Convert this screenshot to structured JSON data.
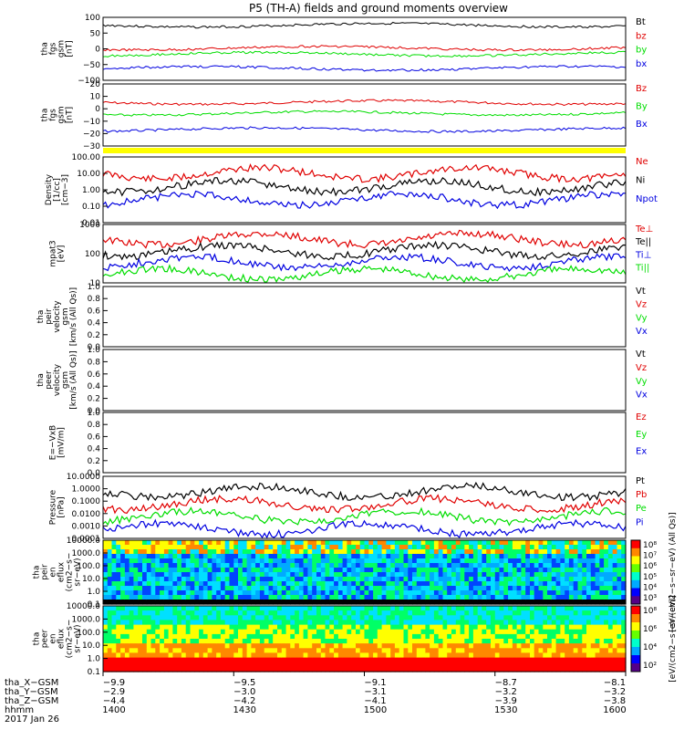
{
  "title": "P5 (TH-A) fields and ground moments overview",
  "colors": {
    "black": "#000000",
    "red": "#e00000",
    "green": "#00dd00",
    "blue": "#0000e0",
    "yellow": "#ffff00"
  },
  "chart_data": [
    {
      "type": "line",
      "id": "p1",
      "ylabel": [
        "tha",
        "fgs",
        "gsm",
        "[nT]"
      ],
      "yticks": [
        "100",
        "50",
        "0",
        "−50",
        "−100"
      ],
      "ylim": [
        -100,
        100
      ],
      "series": [
        {
          "name": "Bt",
          "color": "black",
          "level": 75
        },
        {
          "name": "bz",
          "color": "red",
          "level": 2
        },
        {
          "name": "by",
          "color": "green",
          "level": -17
        },
        {
          "name": "bx",
          "color": "blue",
          "level": -62
        }
      ]
    },
    {
      "type": "line",
      "id": "p2",
      "ylabel": [
        "tha",
        "fgs",
        "gsm",
        "[nT]"
      ],
      "yticks": [
        "20",
        "10",
        "0",
        "−10",
        "−20",
        "−30"
      ],
      "ylim": [
        -35,
        22
      ],
      "series": [
        {
          "name": "Bz",
          "color": "red",
          "level": 5
        },
        {
          "name": "By",
          "color": "green",
          "level": -5
        },
        {
          "name": "Bx",
          "color": "blue",
          "level": -20
        }
      ]
    },
    {
      "type": "line",
      "id": "p3",
      "ylabel": [
        "Density",
        "[1/cc]",
        "[cm−3]"
      ],
      "yticks": [
        "100.00",
        "10.00",
        "1.00",
        "0.10",
        "0.01"
      ],
      "ylim": [
        0.01,
        100
      ],
      "log": true,
      "series": [
        {
          "name": "Ne",
          "color": "red"
        },
        {
          "name": "Ni",
          "color": "black"
        },
        {
          "name": "Npot",
          "color": "blue"
        }
      ]
    },
    {
      "type": "line",
      "id": "p4",
      "ylabel": [
        "mpat3",
        "[eV]"
      ],
      "yticks": [
        "1000",
        "100",
        "10"
      ],
      "ylim": [
        10,
        5000
      ],
      "log": true,
      "series": [
        {
          "name": "Te⊥",
          "color": "red"
        },
        {
          "name": "Te||",
          "color": "black"
        },
        {
          "name": "Ti⊥",
          "color": "blue"
        },
        {
          "name": "Ti||",
          "color": "green"
        }
      ]
    },
    {
      "type": "line",
      "id": "p5",
      "ylabel": [
        "tha",
        "peir",
        "velocity",
        "gsm",
        "[km/s (All Qs)]"
      ],
      "yticks": [
        "1.0",
        "0.8",
        "0.6",
        "0.4",
        "0.2",
        "0.0"
      ],
      "ylim": [
        0,
        1
      ],
      "series": [
        {
          "name": "Vt",
          "color": "black"
        },
        {
          "name": "Vz",
          "color": "red"
        },
        {
          "name": "Vy",
          "color": "green"
        },
        {
          "name": "Vx",
          "color": "blue"
        }
      ]
    },
    {
      "type": "line",
      "id": "p6",
      "ylabel": [
        "tha",
        "peer",
        "velocity",
        "gsm",
        "[km/s (All Qs)]"
      ],
      "yticks": [
        "1.0",
        "0.8",
        "0.6",
        "0.4",
        "0.2",
        "0.0"
      ],
      "ylim": [
        0,
        1
      ],
      "series": [
        {
          "name": "Vt",
          "color": "black"
        },
        {
          "name": "Vz",
          "color": "red"
        },
        {
          "name": "Vy",
          "color": "green"
        },
        {
          "name": "Vx",
          "color": "blue"
        }
      ]
    },
    {
      "type": "line",
      "id": "p7",
      "ylabel": [
        "E=−VxB",
        "[mV/m]"
      ],
      "yticks": [
        "1.0",
        "0.8",
        "0.6",
        "0.4",
        "0.2",
        "0.0"
      ],
      "ylim": [
        0,
        1
      ],
      "series": [
        {
          "name": "Ez",
          "color": "red"
        },
        {
          "name": "Ey",
          "color": "green"
        },
        {
          "name": "Ex",
          "color": "blue"
        }
      ]
    },
    {
      "type": "line",
      "id": "p8",
      "ylabel": [
        "Pressure",
        "[nPa]"
      ],
      "yticks": [
        "10.0000",
        "1.0000",
        "0.1000",
        "0.0100",
        "0.0010",
        "0.0001"
      ],
      "ylim": [
        0.0001,
        10
      ],
      "log": true,
      "series": [
        {
          "name": "Pt",
          "color": "black"
        },
        {
          "name": "Pb",
          "color": "red"
        },
        {
          "name": "Pe",
          "color": "green"
        },
        {
          "name": "Pi",
          "color": "blue"
        }
      ]
    },
    {
      "type": "heatmap",
      "id": "p9",
      "ylabel": [
        "tha",
        "peir",
        "en",
        "eflux",
        "(cm2−s−",
        "sr−eV)"
      ],
      "yticks": [
        "10000.0",
        "1000.0",
        "100.0",
        "10.0",
        "1.0",
        "0.1"
      ],
      "log": true
    },
    {
      "type": "heatmap",
      "id": "p10",
      "ylabel": [
        "tha",
        "peer",
        "en",
        "eflux",
        "(cm2−s−",
        "sr−eV)"
      ],
      "yticks": [
        "10000.0",
        "1000.0",
        "100.0",
        "10.0",
        "1.0",
        "0.1"
      ],
      "log": true
    }
  ],
  "colorbar": {
    "top_ticks": [
      "10⁸",
      "10⁷",
      "10⁶",
      "10⁵",
      "10⁴",
      "10³"
    ],
    "top_label": "[eV/(cm2−s−sr−eV) (All Qs)]",
    "bottom_ticks": [
      "10⁸",
      "10⁶",
      "10⁴",
      "10²"
    ],
    "bottom_label": "[eV/(cm2−s−sr−eV)]"
  },
  "xaxis": {
    "tick_labels": [
      "1400",
      "1430",
      "1500",
      "1530",
      "1600"
    ],
    "rows": [
      {
        "label": "tha_X−GSM",
        "values": [
          "−9.9",
          "−9.5",
          "−9.1",
          "−8.7",
          "−8.1"
        ]
      },
      {
        "label": "tha_Y−GSM",
        "values": [
          "−2.9",
          "−3.0",
          "−3.1",
          "−3.2",
          "−3.2"
        ]
      },
      {
        "label": "tha_Z−GSM",
        "values": [
          "−4.4",
          "−4.2",
          "−4.1",
          "−3.9",
          "−3.8"
        ]
      },
      {
        "label": "hhmm",
        "values": [
          "1400",
          "1430",
          "1500",
          "1530",
          "1600"
        ]
      }
    ],
    "date": "2017 Jan 26"
  }
}
